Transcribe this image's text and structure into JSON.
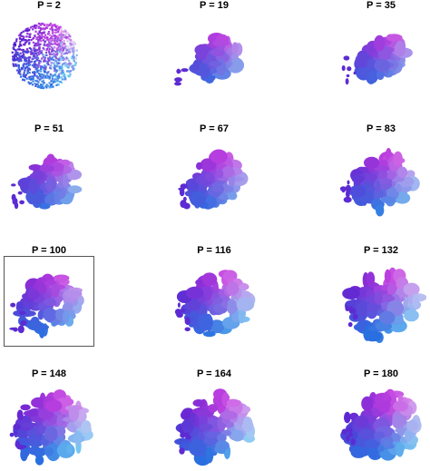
{
  "panels": [
    {
      "title": "P = 2"
    },
    {
      "title": "P = 19"
    },
    {
      "title": "P = 35"
    },
    {
      "title": "P = 51"
    },
    {
      "title": "P = 67"
    },
    {
      "title": "P = 83"
    },
    {
      "title": "P = 100",
      "selected": true
    },
    {
      "title": "P = 116"
    },
    {
      "title": "P = 132"
    },
    {
      "title": "P = 148"
    },
    {
      "title": "P = 164"
    },
    {
      "title": "P = 180"
    }
  ],
  "colors": {
    "magenta": "#c040e0",
    "violet": "#5a1fd0",
    "pink": "#e6a8f0",
    "sky": "#7fd8f5",
    "blue": "#2a6fe0"
  }
}
